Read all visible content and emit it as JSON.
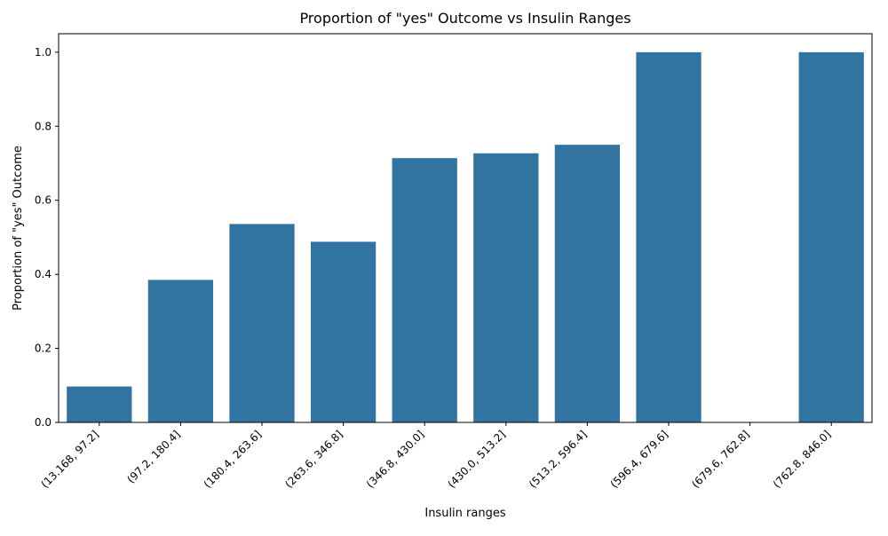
{
  "chart_data": {
    "type": "bar",
    "title": "Proportion of \"yes\" Outcome vs Insulin Ranges",
    "xlabel": "Insulin ranges",
    "ylabel": "Proportion of \"yes\" Outcome",
    "categories": [
      "(13.168, 97.2]",
      "(97.2, 180.4]",
      "(180.4, 263.6]",
      "(263.6, 346.8]",
      "(346.8, 430.0]",
      "(430.0, 513.2]",
      "(513.2, 596.4]",
      "(596.4, 679.6]",
      "(679.6, 762.8]",
      "(762.8, 846.0]"
    ],
    "values": [
      0.097,
      0.385,
      0.536,
      0.488,
      0.714,
      0.727,
      0.75,
      1.0,
      0.0,
      1.0
    ],
    "ylim": [
      0,
      1.05
    ],
    "yticks": [
      0.0,
      0.2,
      0.4,
      0.6,
      0.8,
      1.0
    ],
    "ytick_labels": [
      "0.0",
      "0.2",
      "0.4",
      "0.6",
      "0.8",
      "1.0"
    ],
    "grid": false,
    "bar_color": "#3274a1"
  }
}
